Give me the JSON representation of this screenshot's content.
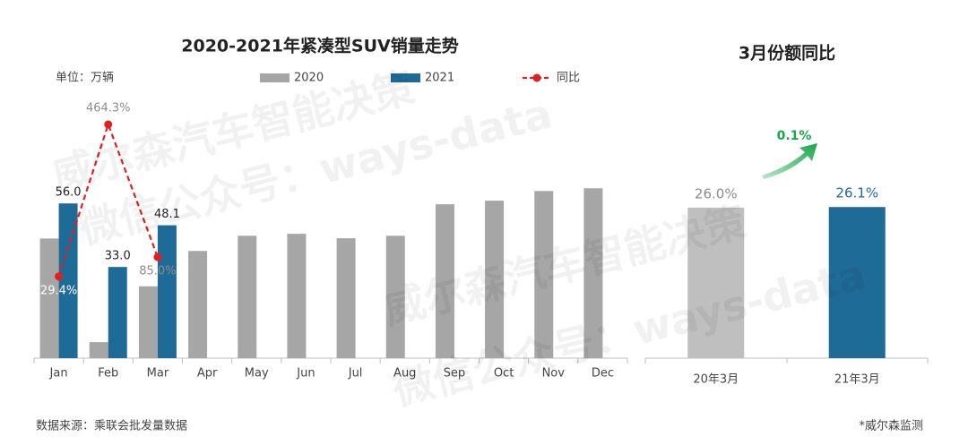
{
  "chart_data": [
    {
      "type": "bar",
      "title": "2020-2021年紧凑型SUV销量走势",
      "unit_label": "单位：万辆",
      "categories": [
        "Jan",
        "Feb",
        "Mar",
        "Apr",
        "May",
        "Jun",
        "Jul",
        "Aug",
        "Sep",
        "Oct",
        "Nov",
        "Dec"
      ],
      "series": [
        {
          "name": "2020",
          "color": "#a6a6a6",
          "values": [
            43.3,
            5.8,
            26.0,
            38.8,
            44.3,
            45.0,
            43.4,
            44.3,
            55.7,
            57.0,
            60.5,
            61.5
          ]
        },
        {
          "name": "2021",
          "color": "#1f6b97",
          "values": [
            56.0,
            33.0,
            48.1,
            null,
            null,
            null,
            null,
            null,
            null,
            null,
            null,
            null
          ],
          "value_labels": [
            "56.0",
            "33.0",
            "48.1",
            null,
            null,
            null,
            null,
            null,
            null,
            null,
            null,
            null
          ]
        },
        {
          "name": "同比",
          "type": "line",
          "axis": "y2",
          "color": "#e02020",
          "values": [
            29.4,
            464.3,
            85.0,
            null,
            null,
            null,
            null,
            null,
            null,
            null,
            null,
            null
          ],
          "value_labels": [
            "29.4%",
            "464.3%",
            "85.0%",
            null,
            null,
            null,
            null,
            null,
            null,
            null,
            null,
            null
          ]
        }
      ],
      "ylim": [
        0,
        70
      ],
      "y2lim": [
        -204,
        349
      ],
      "grid": false,
      "source": "数据来源：乘联会批发量数据"
    },
    {
      "type": "bar",
      "title": "3月份额同比",
      "categories": [
        "20年3月",
        "21年3月"
      ],
      "values": [
        26.0,
        26.1
      ],
      "value_labels": [
        "26.0%",
        "26.1%"
      ],
      "colors": [
        "#bfbfbf",
        "#1f6b97"
      ],
      "ylim": [
        0,
        30
      ],
      "grid": false,
      "annotation": "0.1%",
      "note": "*威尔森监测"
    }
  ],
  "watermarks": [
    "威尔森汽车智能决策",
    "微信公众号：ways-data"
  ]
}
